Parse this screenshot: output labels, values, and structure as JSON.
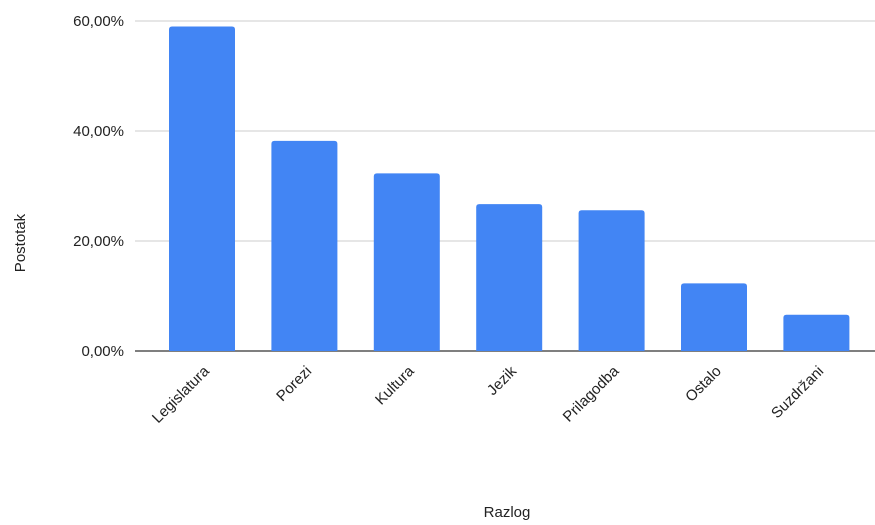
{
  "chart_data": {
    "type": "bar",
    "title": "",
    "xlabel": "Razlog",
    "ylabel": "Postotak",
    "categories": [
      "Legislatura",
      "Porezi",
      "Kultura",
      "Jezik",
      "Prilagodba",
      "Ostalo",
      "Suzdržani"
    ],
    "values": [
      59.0,
      38.2,
      32.3,
      26.7,
      25.6,
      12.3,
      6.6
    ],
    "ylim": [
      0,
      60
    ],
    "yticks": [
      0,
      20,
      40,
      60
    ],
    "ytick_labels": [
      "0,00%",
      "20,00%",
      "40,00%",
      "60,00%"
    ],
    "grid": true,
    "legend": "none",
    "bar_color": "#4285f4",
    "grid_color": "#cccccc",
    "axis_color": "#333333"
  }
}
